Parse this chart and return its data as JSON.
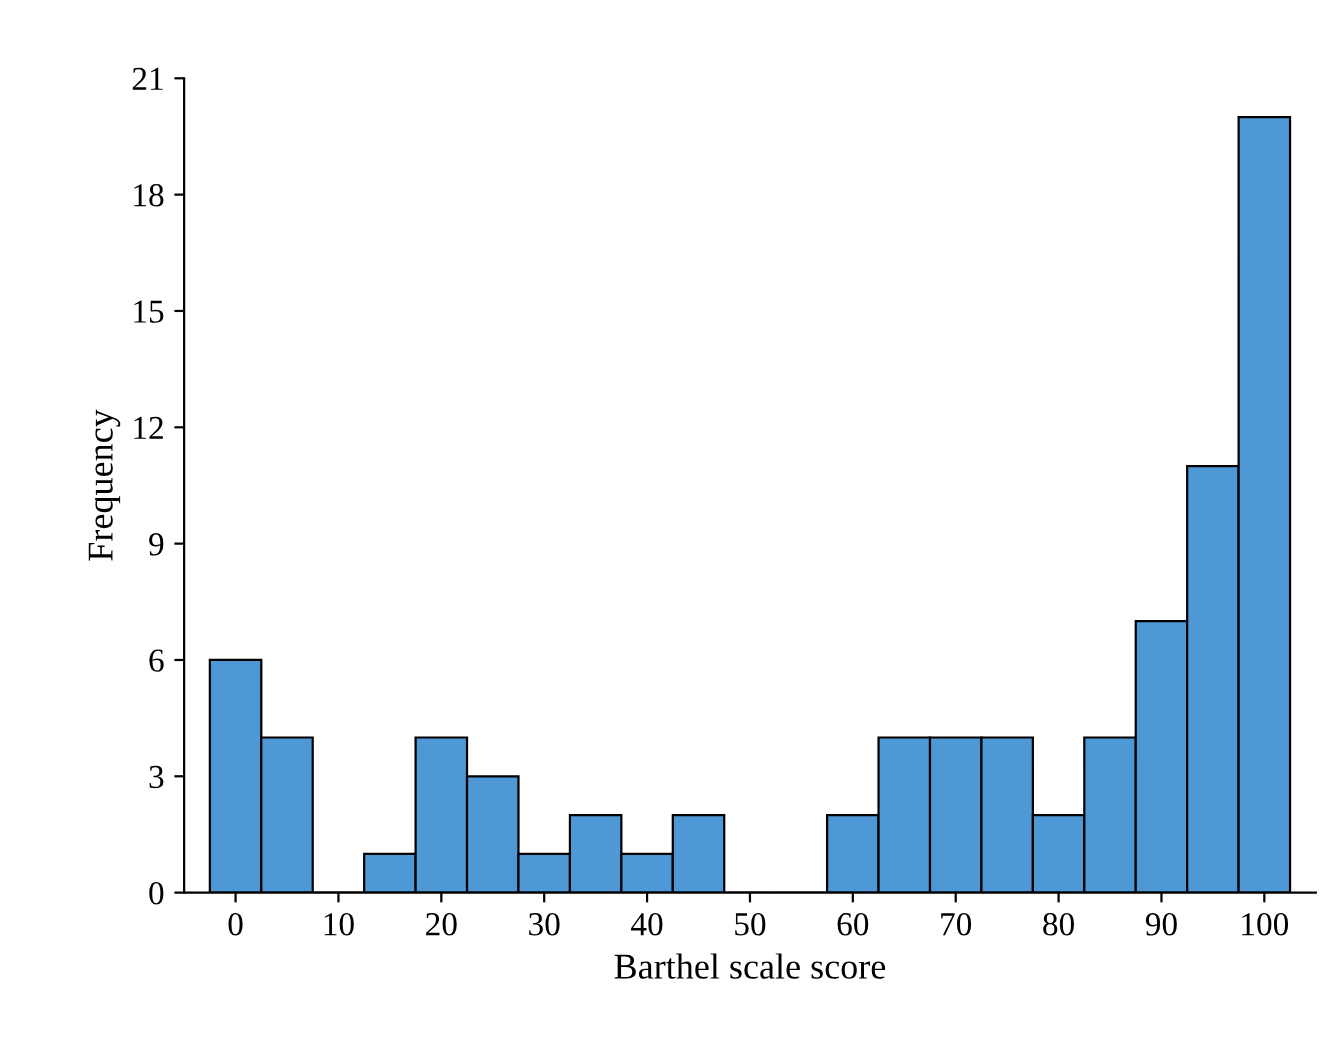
{
  "chart_data": {
    "type": "histogram",
    "xlabel": "Barthel scale score",
    "ylabel": "Frequency",
    "bins": [
      -2.5,
      2.5,
      7.5,
      12.5,
      17.5,
      22.5,
      27.5,
      32.5,
      37.5,
      42.5,
      47.5,
      52.5,
      57.5,
      62.5,
      67.5,
      72.5,
      77.5,
      82.5,
      87.5,
      92.5,
      97.5,
      102.5
    ],
    "values": [
      6,
      4,
      0,
      1,
      4,
      3,
      1,
      2,
      1,
      2,
      0,
      0,
      2,
      4,
      4,
      4,
      2,
      4,
      7,
      11,
      20
    ],
    "color": "#4f98d6",
    "xlim": [
      -5,
      105
    ],
    "xticks": [
      0,
      10,
      20,
      30,
      40,
      50,
      60,
      70,
      80,
      90,
      100
    ],
    "ylim": [
      0,
      21
    ],
    "yticks": [
      0,
      3,
      6,
      9,
      12,
      15,
      18,
      21
    ],
    "grid": false,
    "legend": false
  }
}
